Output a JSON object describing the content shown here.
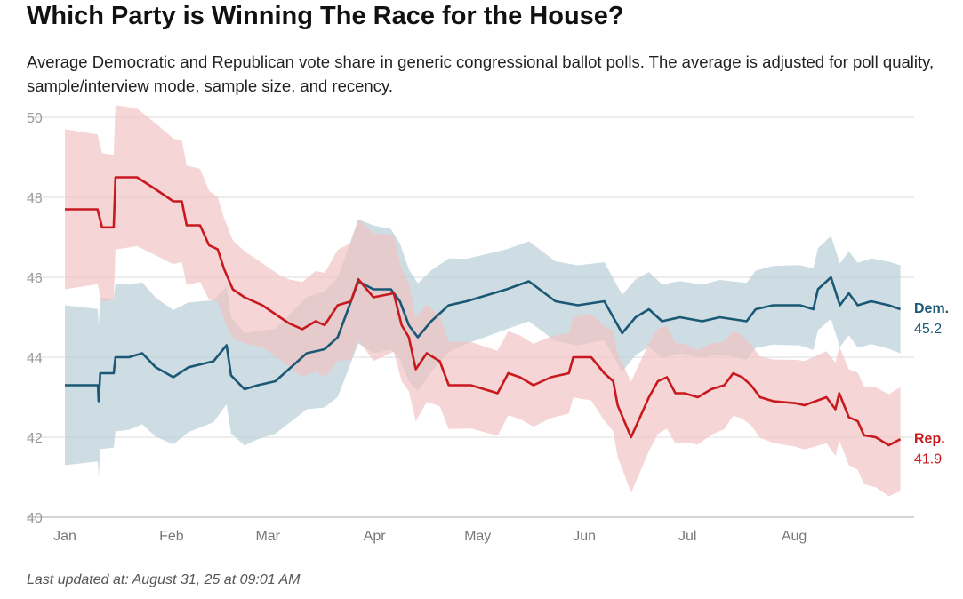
{
  "title": "Which Party is Winning The Race for the House?",
  "subtitle": "Average Democratic and Republican vote share in generic congressional ballot polls. The average is adjusted for poll quality, sample/interview mode, sample size, and recency.",
  "footer": "Last updated at: August 31, 25 at 09:01 AM",
  "chart_data": {
    "type": "line",
    "title": "Which Party is Winning The Race for the House?",
    "xlabel": "",
    "ylabel": "",
    "x_unit": "day of year (Jan 1 = 0)",
    "xlim": [
      0,
      243
    ],
    "ylim": [
      40,
      50
    ],
    "yticks": [
      40,
      42,
      44,
      46,
      48,
      50
    ],
    "xticks": [
      {
        "label": "Jan",
        "day": 0
      },
      {
        "label": "Feb",
        "day": 31
      },
      {
        "label": "Mar",
        "day": 59
      },
      {
        "label": "Apr",
        "day": 90
      },
      {
        "label": "May",
        "day": 120
      },
      {
        "label": "Jun",
        "day": 151
      },
      {
        "label": "Jul",
        "day": 181
      },
      {
        "label": "Aug",
        "day": 212
      }
    ],
    "grid": true,
    "series": [
      {
        "name": "Dem.",
        "last_label": "45.2",
        "color": "#1b5876",
        "band_color": "#b8ced7",
        "points": [
          [
            0,
            43.3
          ],
          [
            9.6,
            43.3
          ],
          [
            9.8,
            42.9
          ],
          [
            10.3,
            43.6
          ],
          [
            14.2,
            43.6
          ],
          [
            14.7,
            44.0
          ],
          [
            18.6,
            44.0
          ],
          [
            22.5,
            44.1
          ],
          [
            26.4,
            43.75
          ],
          [
            31.5,
            43.5
          ],
          [
            35.9,
            43.75
          ],
          [
            43.2,
            43.9
          ],
          [
            47,
            44.3
          ],
          [
            48.3,
            43.55
          ],
          [
            52.2,
            43.2
          ],
          [
            56.1,
            43.3
          ],
          [
            61.2,
            43.4
          ],
          [
            65.1,
            43.7
          ],
          [
            70.3,
            44.1
          ],
          [
            75.5,
            44.2
          ],
          [
            79.3,
            44.5
          ],
          [
            81.9,
            45.1
          ],
          [
            85.3,
            45.9
          ],
          [
            89.7,
            45.7
          ],
          [
            94.8,
            45.7
          ],
          [
            97.4,
            45.4
          ],
          [
            100,
            44.8
          ],
          [
            102.6,
            44.5
          ],
          [
            106.5,
            44.9
          ],
          [
            111.6,
            45.3
          ],
          [
            116.8,
            45.4
          ],
          [
            128.4,
            45.7
          ],
          [
            134.9,
            45.9
          ],
          [
            142.6,
            45.4
          ],
          [
            149.1,
            45.3
          ],
          [
            156.8,
            45.4
          ],
          [
            162,
            44.6
          ],
          [
            165.9,
            45.0
          ],
          [
            169.8,
            45.2
          ],
          [
            173.6,
            44.9
          ],
          [
            178.8,
            45.0
          ],
          [
            185.3,
            44.9
          ],
          [
            190.4,
            45.0
          ],
          [
            198.2,
            44.9
          ],
          [
            200.8,
            45.2
          ],
          [
            205.9,
            45.3
          ],
          [
            213.7,
            45.3
          ],
          [
            217.6,
            45.2
          ],
          [
            218.9,
            45.7
          ],
          [
            222.7,
            46.0
          ],
          [
            225.3,
            45.3
          ],
          [
            227.9,
            45.6
          ],
          [
            230.5,
            45.3
          ],
          [
            234.4,
            45.4
          ],
          [
            239.5,
            45.3
          ],
          [
            242.9,
            45.2
          ]
        ],
        "ci_halfwidth": [
          [
            0,
            2.0
          ],
          [
            30,
            1.7
          ],
          [
            60,
            1.3
          ],
          [
            90,
            1.6
          ],
          [
            120,
            1.0
          ],
          [
            150,
            1.0
          ],
          [
            180,
            0.9
          ],
          [
            243,
            1.1
          ]
        ]
      },
      {
        "name": "Rep.",
        "last_label": "41.9",
        "color": "#c8191e",
        "band_color": "#f1c3c3",
        "points": [
          [
            0,
            47.7
          ],
          [
            9.5,
            47.7
          ],
          [
            10.8,
            47.25
          ],
          [
            14.2,
            47.25
          ],
          [
            14.7,
            48.5
          ],
          [
            21,
            48.5
          ],
          [
            26.4,
            48.2
          ],
          [
            31.5,
            47.9
          ],
          [
            34,
            47.9
          ],
          [
            35.4,
            47.3
          ],
          [
            39.3,
            47.3
          ],
          [
            41.9,
            46.8
          ],
          [
            44.4,
            46.7
          ],
          [
            46.3,
            46.2
          ],
          [
            48.8,
            45.7
          ],
          [
            52.2,
            45.5
          ],
          [
            57.4,
            45.3
          ],
          [
            62.5,
            45.0
          ],
          [
            65.1,
            44.85
          ],
          [
            69,
            44.7
          ],
          [
            72.9,
            44.9
          ],
          [
            75.5,
            44.8
          ],
          [
            79.3,
            45.3
          ],
          [
            83.2,
            45.4
          ],
          [
            85.3,
            45.95
          ],
          [
            89.7,
            45.5
          ],
          [
            95.6,
            45.6
          ],
          [
            97.9,
            44.8
          ],
          [
            100,
            44.5
          ],
          [
            102,
            43.7
          ],
          [
            105.2,
            44.1
          ],
          [
            109,
            43.9
          ],
          [
            111.6,
            43.3
          ],
          [
            118,
            43.3
          ],
          [
            125.8,
            43.1
          ],
          [
            128.9,
            43.6
          ],
          [
            132.3,
            43.5
          ],
          [
            136.2,
            43.3
          ],
          [
            141.3,
            43.5
          ],
          [
            146.5,
            43.6
          ],
          [
            147.8,
            44.0
          ],
          [
            153,
            44.0
          ],
          [
            156.8,
            43.6
          ],
          [
            159.4,
            43.4
          ],
          [
            160.7,
            42.8
          ],
          [
            164.6,
            42.0
          ],
          [
            167.2,
            42.5
          ],
          [
            169.8,
            43.0
          ],
          [
            172.4,
            43.4
          ],
          [
            175,
            43.5
          ],
          [
            177.5,
            43.1
          ],
          [
            180.1,
            43.1
          ],
          [
            184,
            43.0
          ],
          [
            187.9,
            43.2
          ],
          [
            191.7,
            43.3
          ],
          [
            194.3,
            43.6
          ],
          [
            196.9,
            43.5
          ],
          [
            199.5,
            43.3
          ],
          [
            202.1,
            43.0
          ],
          [
            206,
            42.9
          ],
          [
            212.4,
            42.85
          ],
          [
            215,
            42.8
          ],
          [
            221.4,
            43.0
          ],
          [
            224,
            42.7
          ],
          [
            225.1,
            43.1
          ],
          [
            227.9,
            42.5
          ],
          [
            230.5,
            42.4
          ],
          [
            232.3,
            42.05
          ],
          [
            235.7,
            42.0
          ],
          [
            239.5,
            41.8
          ],
          [
            242.9,
            41.95
          ]
        ],
        "ci_halfwidth": [
          [
            0,
            2.0
          ],
          [
            30,
            1.6
          ],
          [
            60,
            1.0
          ],
          [
            90,
            1.6
          ],
          [
            110,
            1.1
          ],
          [
            150,
            1.0
          ],
          [
            165,
            1.4
          ],
          [
            200,
            1.0
          ],
          [
            243,
            1.3
          ]
        ]
      }
    ]
  }
}
